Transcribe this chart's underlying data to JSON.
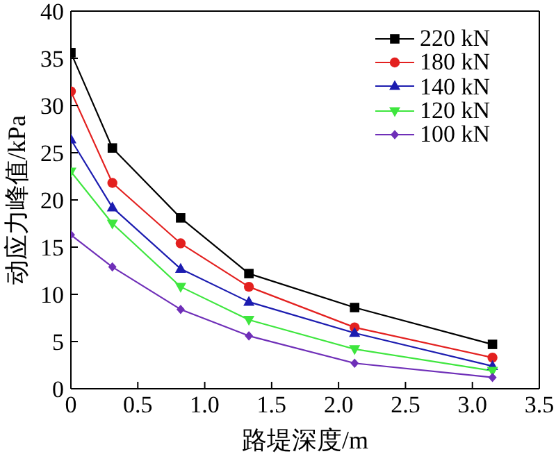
{
  "chart_data": {
    "type": "line",
    "xlabel": "路堤深度/m",
    "ylabel": "动应力峰值/kPa",
    "x": [
      0,
      0.31,
      0.82,
      1.33,
      2.12,
      3.15
    ],
    "series": [
      {
        "name": "220 kN",
        "color": "#000000",
        "marker": "square",
        "values": [
          35.6,
          25.5,
          18.1,
          12.2,
          8.6,
          4.7
        ]
      },
      {
        "name": "180 kN",
        "color": "#e3201f",
        "marker": "circle",
        "values": [
          31.5,
          21.8,
          15.4,
          10.8,
          6.5,
          3.3
        ]
      },
      {
        "name": "140 kN",
        "color": "#1c1cb0",
        "marker": "triangle",
        "values": [
          26.4,
          19.2,
          12.7,
          9.2,
          5.9,
          2.4
        ]
      },
      {
        "name": "120 kN",
        "color": "#3ee63e",
        "marker": "triangle-down",
        "values": [
          23.0,
          17.5,
          10.8,
          7.3,
          4.2,
          1.9
        ]
      },
      {
        "name": "100 kN",
        "color": "#6f2fb8",
        "marker": "diamond",
        "values": [
          16.3,
          12.9,
          8.4,
          5.6,
          2.7,
          1.2
        ]
      }
    ],
    "xlim": [
      0,
      3.5
    ],
    "xticks": [
      0,
      0.5,
      {
        "value": 1,
        "label": "1.0"
      },
      1.5,
      {
        "value": 2,
        "label": "2.0"
      },
      2.5,
      {
        "value": 3,
        "label": "3.0"
      },
      3.5
    ],
    "ylim": [
      0,
      40
    ],
    "yticks": [
      0,
      5,
      10,
      15,
      20,
      25,
      30,
      35,
      40
    ],
    "legend": "top right"
  }
}
